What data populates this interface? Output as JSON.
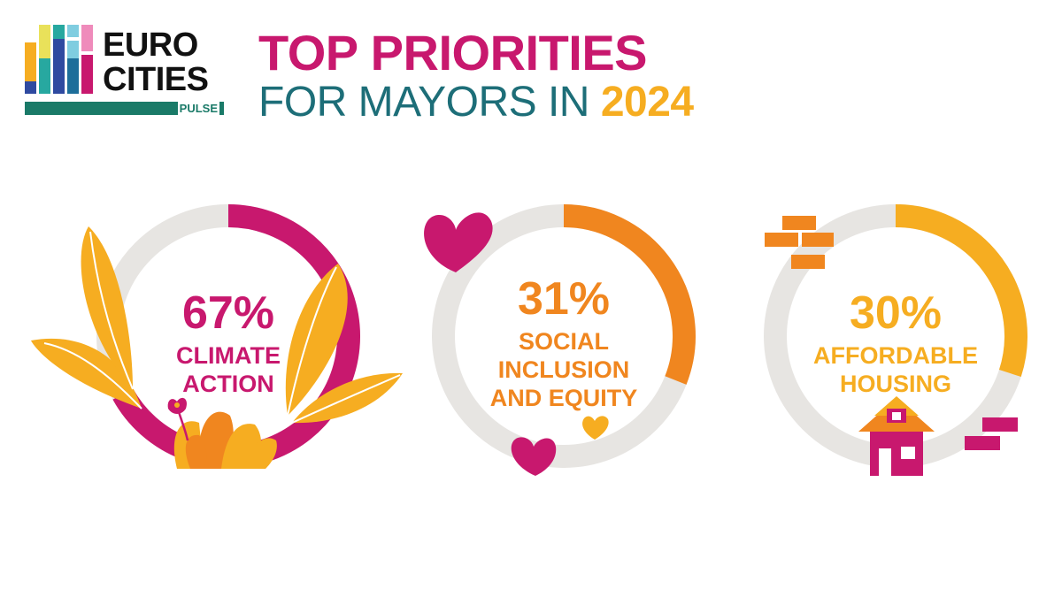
{
  "brand": {
    "word1": "EURO",
    "word2": "CITIES",
    "sub": "PULSE",
    "colors": [
      "#f6ad21",
      "#2f4aa0",
      "#e9e15a",
      "#27a8a0",
      "#7fcde0",
      "#c8186e",
      "#ef8bbb"
    ]
  },
  "title": {
    "line1": "TOP PRIORITIES",
    "line2_prefix": "FOR MAYORS IN",
    "year": "2024"
  },
  "chart_data": [
    {
      "type": "pie",
      "values": [
        67
      ],
      "value_label": "67%",
      "label_lines": [
        "CLIMATE",
        "ACTION"
      ],
      "color": "#c8186e",
      "track_color": "#e7e5e2",
      "decoration": "plant-leaves"
    },
    {
      "type": "pie",
      "values": [
        31
      ],
      "value_label": "31%",
      "label_lines": [
        "SOCIAL",
        "INCLUSION",
        "AND EQUITY"
      ],
      "color": "#f0861f",
      "track_color": "#e7e5e2",
      "decoration": "hearts"
    },
    {
      "type": "pie",
      "values": [
        30
      ],
      "value_label": "30%",
      "label_lines": [
        "AFFORDABLE",
        "HOUSING"
      ],
      "color": "#f6ad21",
      "track_color": "#e7e5e2",
      "decoration": "house-bricks"
    }
  ]
}
